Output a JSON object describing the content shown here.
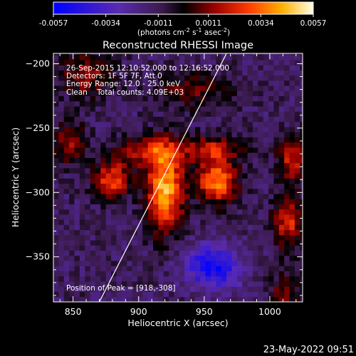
{
  "chart_data": {
    "type": "heatmap",
    "title": "Reconstructed RHESSI Image",
    "xlabel": "Heliocentric X (arcsec)",
    "ylabel": "Heliocentric Y (arcsec)",
    "xlim": [
      835,
      1025
    ],
    "ylim": [
      -385,
      -192
    ],
    "x_ticks": [
      850,
      900,
      950,
      1000
    ],
    "y_ticks": [
      -200,
      -250,
      -300,
      -350
    ],
    "colorbar": {
      "ticks": [
        "-0.0057",
        "-0.0034",
        "-0.0011",
        "0.0011",
        "0.0034",
        "0.0057"
      ],
      "values": [
        -0.0057,
        -0.0034,
        -0.0011,
        0.0011,
        0.0034,
        0.0057
      ],
      "unit_prefix": "(photons cm",
      "unit_sup1": "-2",
      "unit_mid": " s",
      "unit_sup2": "-1",
      "unit_mid2": " asec",
      "unit_sup3": "-2",
      "unit_suffix": ")"
    },
    "annotations": {
      "line1": "26-Sep-2015 12:10:52.000 to 12:16:52.000",
      "line2": "Detectors: 1F 5F 7F, Att 0",
      "line3": "Energy Range: 12.0 - 25.0 keV",
      "line4": "Clean    Total counts: 4.09E+03",
      "peak": "Position of Peak = [918,-308]"
    },
    "sources": [
      {
        "x": 918,
        "y": -300,
        "amp": 1.0,
        "sx": 10,
        "sy": 22
      },
      {
        "x": 958,
        "y": -293,
        "amp": 0.85,
        "sx": 11,
        "sy": 12
      },
      {
        "x": 877,
        "y": -292,
        "amp": 0.7,
        "sx": 10,
        "sy": 10
      },
      {
        "x": 905,
        "y": -270,
        "amp": 0.55,
        "sx": 18,
        "sy": 8
      },
      {
        "x": 955,
        "y": -268,
        "amp": 0.5,
        "sx": 16,
        "sy": 7
      },
      {
        "x": 1015,
        "y": -275,
        "amp": 0.6,
        "sx": 8,
        "sy": 12
      },
      {
        "x": 1012,
        "y": -325,
        "amp": 0.6,
        "sx": 8,
        "sy": 15
      },
      {
        "x": 858,
        "y": -210,
        "amp": 0.45,
        "sx": 14,
        "sy": 12
      },
      {
        "x": 845,
        "y": -262,
        "amp": 0.45,
        "sx": 8,
        "sy": 12
      },
      {
        "x": 1010,
        "y": -380,
        "amp": 0.4,
        "sx": 8,
        "sy": 10
      },
      {
        "x": 940,
        "y": -222,
        "amp": 0.35,
        "sx": 20,
        "sy": 10
      },
      {
        "x": 955,
        "y": -360,
        "amp": -0.7,
        "sx": 15,
        "sy": 12
      }
    ],
    "limb_line": {
      "x": [
        870,
        967
      ],
      "y": [
        -385,
        -192
      ]
    }
  },
  "footer": {
    "timestamp": "23-May-2022 09:51"
  }
}
